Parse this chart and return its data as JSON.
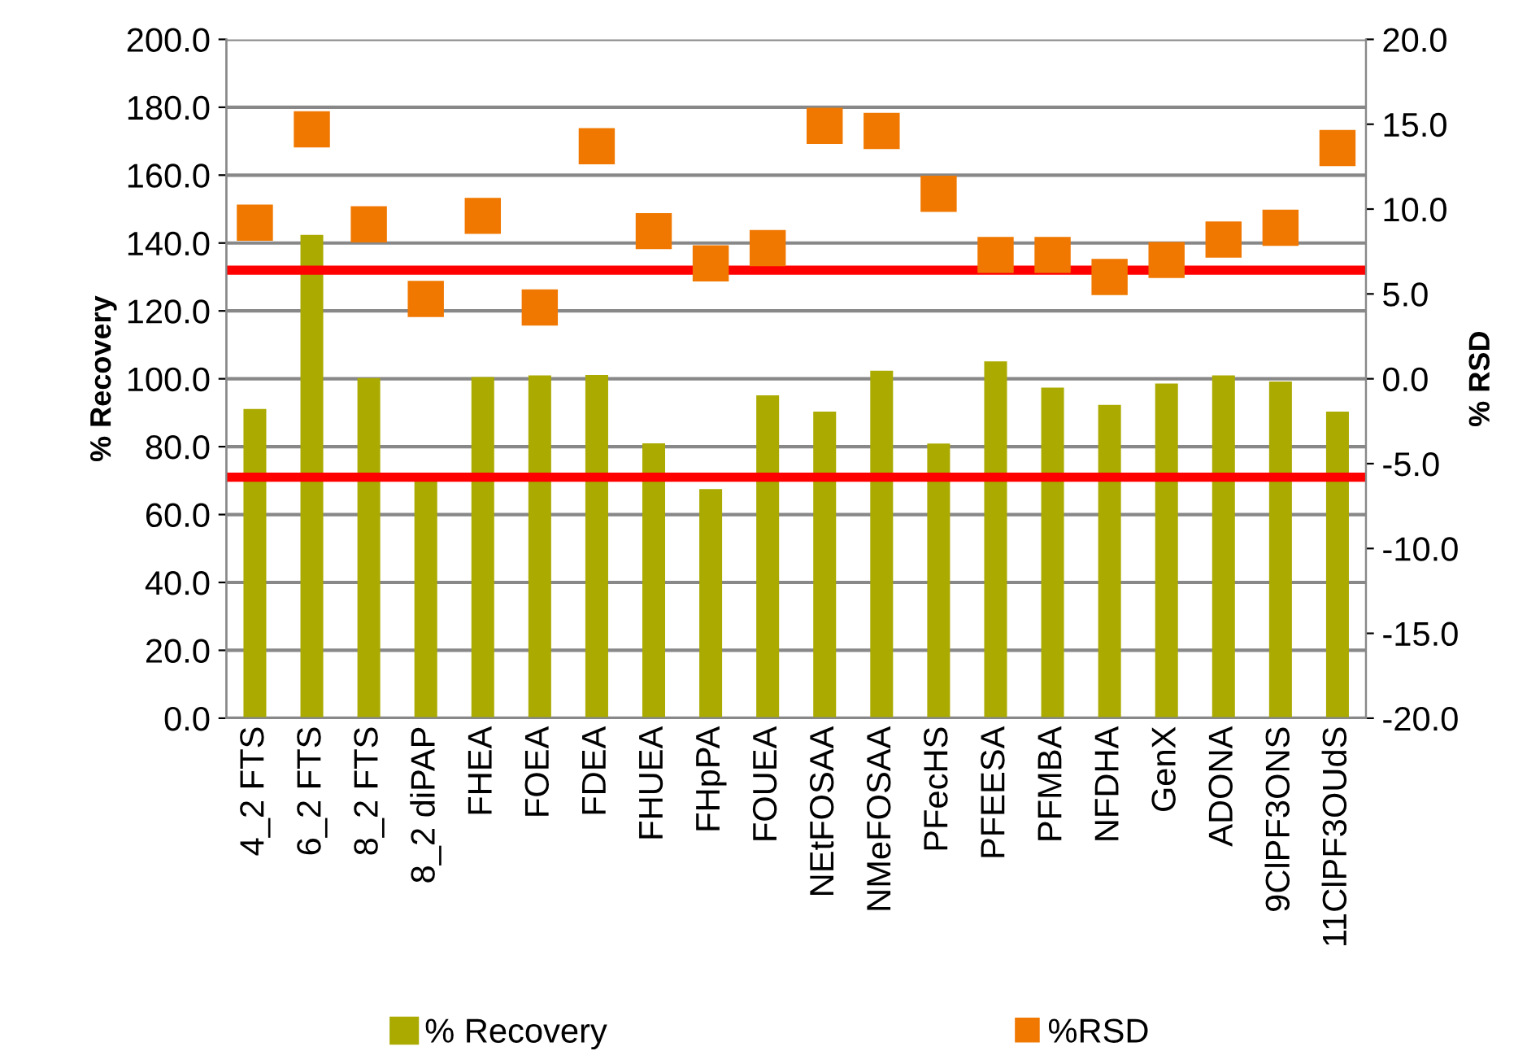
{
  "chart_data": {
    "type": "bar",
    "ylabel": "% Recovery",
    "y2label": "% RSD",
    "categories": [
      "4_2 FTS",
      "6_2 FTS",
      "8_2 FTS",
      "8_2 diPAP",
      "FHEA",
      "FOEA",
      "FDEA",
      "FHUEA",
      "FHpPA",
      "FOUEA",
      "NEtFOSAA",
      "NMeFOSAA",
      "PFecHS",
      "PFEESA",
      "PFMBA",
      "NFDHA",
      "GenX",
      "ADONA",
      "9ClPF3ONS",
      "11ClPF3OUdS"
    ],
    "series": [
      {
        "name": "% Recovery",
        "color": "#aaaa00",
        "values": [
          91.1,
          142.4,
          100.2,
          70,
          100.5,
          101,
          101.1,
          81,
          67.5,
          95.1,
          90.3,
          102.4,
          80.9,
          105.1,
          97.4,
          92.3,
          98.6,
          101,
          99.2,
          90.3
        ]
      },
      {
        "name": "%RSD",
        "type": "scatter",
        "axis": "y2",
        "marker": "square",
        "color": "#f07800",
        "values": [
          9.2,
          14.7,
          9.1,
          4.7,
          9.6,
          4.2,
          13.7,
          8.7,
          6.8,
          7.7,
          14.9,
          14.6,
          10.9,
          7.3,
          7.3,
          6.0,
          7.0,
          8.2,
          8.9,
          13.6
        ]
      }
    ],
    "ylim": [
      0,
      200
    ],
    "yticks": [
      {
        "value": 0,
        "label": "0.0"
      },
      {
        "value": 20,
        "label": "20.0"
      },
      {
        "value": 40,
        "label": "40.0"
      },
      {
        "value": 60,
        "label": "60.0"
      },
      {
        "value": 80,
        "label": "80.0"
      },
      {
        "value": 100,
        "label": "100.0"
      },
      {
        "value": 120,
        "label": "120.0"
      },
      {
        "value": 140,
        "label": "140.0"
      },
      {
        "value": 160,
        "label": "160.0"
      },
      {
        "value": 180,
        "label": "180.0"
      },
      {
        "value": 200,
        "label": "200.0"
      }
    ],
    "y2lim": [
      -20,
      20
    ],
    "y2ticks": [
      {
        "value": -20,
        "label": "-20.0"
      },
      {
        "value": -15,
        "label": "-15.0"
      },
      {
        "value": -10,
        "label": "-10.0"
      },
      {
        "value": -5,
        "label": "-5.0"
      },
      {
        "value": 0,
        "label": "0.0"
      },
      {
        "value": 5,
        "label": "5.0"
      },
      {
        "value": 10,
        "label": "10.0"
      },
      {
        "value": 15,
        "label": "15.0"
      },
      {
        "value": 20,
        "label": "20.0"
      }
    ],
    "ref_lines": [
      {
        "axis": "y",
        "value": 132,
        "color": "#ff0000"
      },
      {
        "axis": "y",
        "value": 71,
        "color": "#ff0000"
      }
    ],
    "grid": "y",
    "legend": "bottom"
  }
}
